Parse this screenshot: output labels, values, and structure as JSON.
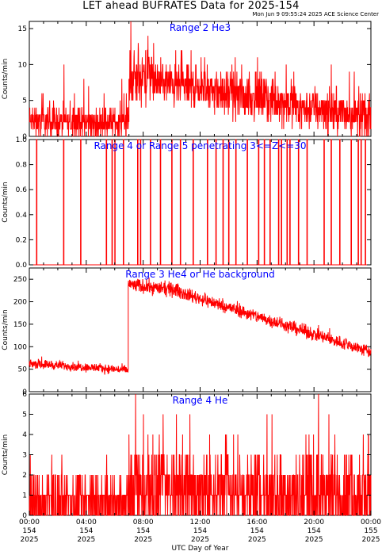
{
  "header": {
    "title": "LET ahead BUFRATES Data for 2025-154",
    "timestamp": "Mon Jun  9 09:55:24 2025 ACE Science Center"
  },
  "colors": {
    "data": "#ff0000",
    "label": "#0000ff",
    "axes": "#000000"
  },
  "chart_data": [
    {
      "type": "line",
      "title": "Range 2 He3",
      "ylabel": "Counts/min",
      "ylim": [
        0,
        16
      ],
      "yticks": [
        0,
        5,
        10,
        15
      ],
      "x_hours_range": [
        0,
        24
      ],
      "segments": [
        {
          "x_hours": [
            0,
            7.0
          ],
          "level": [
            2.0,
            1.8
          ],
          "noise": 1.9,
          "spike_prob": 0.08,
          "spike_max": 5
        },
        {
          "x_hours": [
            7.0,
            8.5
          ],
          "level": [
            7.5,
            8.2
          ],
          "noise": 3.0,
          "spike_prob": 0.12,
          "spike_max": 6
        },
        {
          "x_hours": [
            8.5,
            24.0
          ],
          "level": [
            7.8,
            2.5
          ],
          "noise": 2.6,
          "spike_prob": 0.07,
          "spike_max": 5
        }
      ],
      "integer_values": true
    },
    {
      "type": "line",
      "title": "Range 4 or Range 5 penetrating 3<=Z<=30",
      "ylabel": "Counts/min",
      "ylim": [
        0,
        1
      ],
      "yticks": [
        0.0,
        0.2,
        0.4,
        0.6,
        0.8,
        1.0
      ],
      "x_hours_range": [
        0,
        24
      ],
      "event_hours": [
        0.5,
        2.4,
        3.6,
        5.4,
        5.8,
        6.0,
        6.6,
        7.6,
        7.8,
        8.5,
        9.2,
        10.0,
        10.6,
        11.5,
        12.5,
        13.1,
        13.6,
        14.0,
        14.5,
        15.3,
        16.1,
        16.5,
        16.9,
        17.5,
        17.7,
        18.1,
        18.3,
        18.9,
        19.5,
        20.7,
        21.2,
        21.8,
        22.6,
        23.1,
        23.3,
        23.6
      ]
    },
    {
      "type": "line",
      "title": "Range 3 He4 or He background",
      "ylabel": "Counts/min",
      "ylim": [
        0,
        275
      ],
      "yticks": [
        0,
        50,
        100,
        150,
        200,
        250
      ],
      "x_hours_range": [
        0,
        24
      ],
      "segments": [
        {
          "x_hours": [
            0,
            6.95
          ],
          "level": [
            63,
            48
          ],
          "noise": 9,
          "spike_prob": 0.02,
          "spike_max": 15
        },
        {
          "x_hours": [
            6.95,
            10.5
          ],
          "level": [
            238,
            225
          ],
          "noise": 14,
          "spike_prob": 0.03,
          "spike_max": 15
        },
        {
          "x_hours": [
            10.5,
            24.0
          ],
          "level": [
            222,
            88
          ],
          "noise": 13,
          "spike_prob": 0.03,
          "spike_max": 15
        }
      ],
      "integer_values": false
    },
    {
      "type": "line",
      "title": "Range 4 He",
      "ylabel": "Counts/min",
      "ylim": [
        0,
        6
      ],
      "yticks": [
        0,
        1,
        2,
        3,
        4,
        5,
        6
      ],
      "x_hours_range": [
        0,
        24
      ],
      "segments": [
        {
          "x_hours": [
            0,
            7.0
          ],
          "level": [
            0.6,
            0.6
          ],
          "noise": 1.3,
          "spike_prob": 0.04,
          "spike_max": 2
        },
        {
          "x_hours": [
            7.0,
            24.0
          ],
          "level": [
            1.3,
            1.0
          ],
          "noise": 1.8,
          "spike_prob": 0.07,
          "spike_max": 3
        }
      ],
      "integer_values": true
    }
  ],
  "x_axis": {
    "title": "UTC Day of Year",
    "ticks": [
      {
        "time": "00:00",
        "doy": "154",
        "year": "2025",
        "hour": 0
      },
      {
        "time": "04:00",
        "doy": "154",
        "year": "2025",
        "hour": 4
      },
      {
        "time": "08:00",
        "doy": "154",
        "year": "2025",
        "hour": 8
      },
      {
        "time": "12:00",
        "doy": "154",
        "year": "2025",
        "hour": 12
      },
      {
        "time": "16:00",
        "doy": "154",
        "year": "2025",
        "hour": 16
      },
      {
        "time": "20:00",
        "doy": "154",
        "year": "2025",
        "hour": 20
      },
      {
        "time": "00:00",
        "doy": "155",
        "year": "2025",
        "hour": 24
      }
    ]
  }
}
